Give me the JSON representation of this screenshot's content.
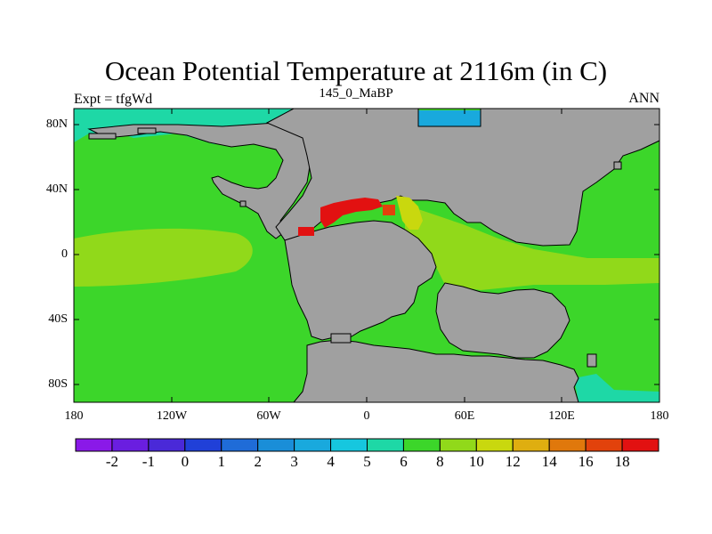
{
  "map": {
    "title": "Ocean Potential Temperature at 2116m (in C)",
    "subtitle": "145_0_MaBP",
    "left_label": "Expt = tfgWd",
    "right_label": "ANN",
    "lat_ticks": [
      "80N",
      "40N",
      "0",
      "40S",
      "80S"
    ],
    "lon_ticks": [
      "180",
      "120W",
      "60W",
      "0",
      "60E",
      "120E",
      "180"
    ],
    "land_color": "#a0a0a0",
    "colorbar": {
      "levels": [
        "-2",
        "-1",
        "0",
        "1",
        "2",
        "3",
        "4",
        "5",
        "6",
        "8",
        "10",
        "12",
        "14",
        "16",
        "18"
      ],
      "colors": [
        "#8a19e8",
        "#6a1ee0",
        "#4a29d8",
        "#2040d8",
        "#1f6cd8",
        "#1a8ed8",
        "#19a9dd",
        "#16c7df",
        "#1ed8a6",
        "#3cd62a",
        "#91d91a",
        "#c9d80e",
        "#dfae10",
        "#e0780c",
        "#e2420c",
        "#e21111"
      ]
    }
  }
}
